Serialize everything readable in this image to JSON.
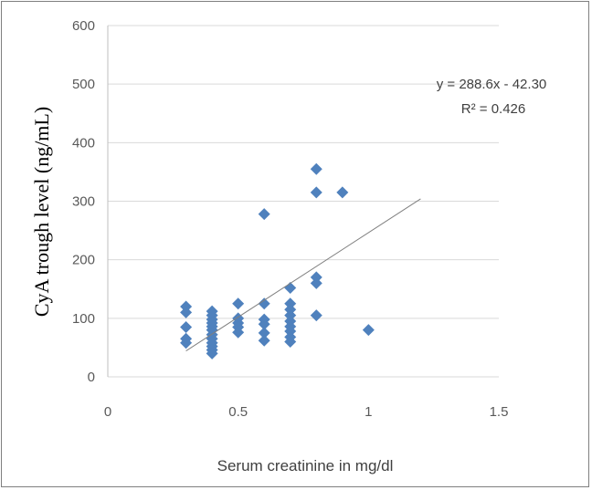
{
  "chart_data": {
    "type": "scatter",
    "title": "",
    "xlabel": "Serum creatinine in mg/dl",
    "ylabel": "CyA trough level (ng/mL)",
    "xlim": [
      0,
      1.5
    ],
    "ylim": [
      0,
      600
    ],
    "xticks": [
      0,
      0.5,
      1,
      1.5
    ],
    "xtick_labels": [
      "0",
      "0.5",
      "1",
      "1.5"
    ],
    "yticks": [
      0,
      100,
      200,
      300,
      400,
      500,
      600
    ],
    "ytick_labels": [
      "0",
      "100",
      "200",
      "300",
      "400",
      "500",
      "600"
    ],
    "grid": "horizontal",
    "marker_color": "#4f81bd",
    "trendline": {
      "equation": "y = 288.6x - 42.30",
      "r2_label": "R² = 0.426",
      "slope": 288.6,
      "intercept": -42.3,
      "x_range": [
        0.3,
        1.2
      ],
      "color": "#7f7f7f"
    },
    "points": [
      [
        0.3,
        120
      ],
      [
        0.3,
        110
      ],
      [
        0.3,
        85
      ],
      [
        0.3,
        65
      ],
      [
        0.3,
        58
      ],
      [
        0.4,
        112
      ],
      [
        0.4,
        105
      ],
      [
        0.4,
        98
      ],
      [
        0.4,
        92
      ],
      [
        0.4,
        86
      ],
      [
        0.4,
        80
      ],
      [
        0.4,
        72
      ],
      [
        0.4,
        65
      ],
      [
        0.4,
        58
      ],
      [
        0.4,
        52
      ],
      [
        0.4,
        46
      ],
      [
        0.4,
        40
      ],
      [
        0.5,
        125
      ],
      [
        0.5,
        100
      ],
      [
        0.5,
        92
      ],
      [
        0.5,
        85
      ],
      [
        0.5,
        76
      ],
      [
        0.6,
        278
      ],
      [
        0.6,
        125
      ],
      [
        0.6,
        98
      ],
      [
        0.6,
        90
      ],
      [
        0.6,
        75
      ],
      [
        0.6,
        62
      ],
      [
        0.7,
        152
      ],
      [
        0.7,
        125
      ],
      [
        0.7,
        115
      ],
      [
        0.7,
        105
      ],
      [
        0.7,
        95
      ],
      [
        0.7,
        86
      ],
      [
        0.7,
        78
      ],
      [
        0.7,
        68
      ],
      [
        0.7,
        60
      ],
      [
        0.8,
        355
      ],
      [
        0.8,
        315
      ],
      [
        0.8,
        170
      ],
      [
        0.8,
        160
      ],
      [
        0.8,
        105
      ],
      [
        0.9,
        315
      ],
      [
        1.0,
        80
      ]
    ]
  }
}
